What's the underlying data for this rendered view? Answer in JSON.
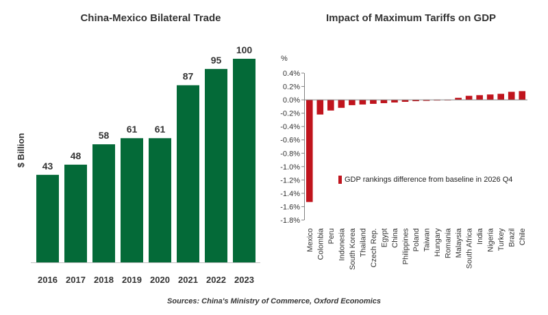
{
  "chart_data": [
    {
      "type": "bar",
      "title": "China-Mexico Bilateral Trade",
      "ylabel": "$ Billion",
      "xlabel": "",
      "categories": [
        "2016",
        "2017",
        "2018",
        "2019",
        "2020",
        "2021",
        "2022",
        "2023"
      ],
      "values": [
        43,
        48,
        58,
        61,
        61,
        87,
        95,
        100
      ],
      "ylim": [
        0,
        100
      ],
      "color": "#046A38",
      "grid": false,
      "data_labels": true
    },
    {
      "type": "bar",
      "title": "Impact of Maximum Tariffs on GDP",
      "ylabel": "%",
      "categories": [
        "Mexico",
        "Colombia",
        "Peru",
        "Indonesia",
        "South Korea",
        "Thailand",
        "Czech Rep.",
        "Egypt",
        "China",
        "Philippines",
        "Poland",
        "Taiwan",
        "Hungary",
        "Romania",
        "Malaysia",
        "South Africa",
        "India",
        "Nigeria",
        "Turkey",
        "Brazil",
        "Chile"
      ],
      "values": [
        -1.53,
        -0.22,
        -0.16,
        -0.12,
        -0.08,
        -0.07,
        -0.06,
        -0.05,
        -0.04,
        -0.03,
        -0.02,
        -0.015,
        -0.01,
        -0.005,
        0.03,
        0.06,
        0.07,
        0.08,
        0.09,
        0.12,
        0.13
      ],
      "yticks": [
        0.4,
        0.2,
        0.0,
        -0.2,
        -0.4,
        -0.6,
        -0.8,
        -1.0,
        -1.2,
        -1.4,
        -1.6,
        -1.8
      ],
      "yticklabels": [
        "0.4%",
        "0.2%",
        "0.0%",
        "-0.2%",
        "-0.4%",
        "-0.6%",
        "-0.8%",
        "-1.0%",
        "-1.2%",
        "-1.4%",
        "-1.6%",
        "-1.8%"
      ],
      "ylim": [
        -1.8,
        0.4
      ],
      "color": "#C0141D",
      "legend": "GDP rankings difference from baseline in 2026 Q4",
      "legend_position": "middle-right",
      "grid": false
    }
  ],
  "source": "Sources: China's Ministry of Commerce, Oxford Economics"
}
